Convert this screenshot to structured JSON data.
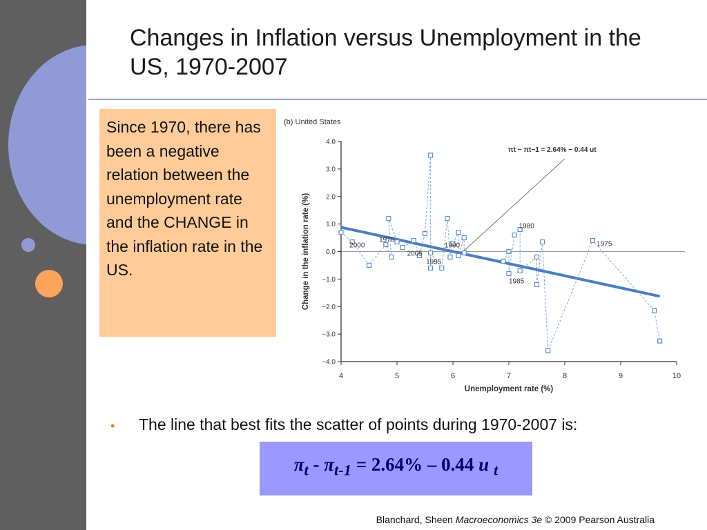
{
  "slide": {
    "title": "Changes in Inflation versus Unemployment in the US, 1970-2007",
    "callout": "Since 1970, there has been a negative relation between the unemployment rate and the CHANGE in the inflation rate in the US.",
    "bullet": "The line that best fits the scatter of points during 1970-2007 is:",
    "formula": {
      "pi1": "π",
      "sub1": "t",
      "minus": " - ",
      "pi2": "π",
      "sub2": "t-1",
      "rest": " = 2.64% – 0.44 ",
      "u": "u",
      "sub3": "t"
    },
    "footer": {
      "authors": "Blanchard, Sheen ",
      "book": "Macroeconomics 3e",
      "rest": " © 2009 Pearson Australia"
    },
    "colors": {
      "band": "#5f5f5f",
      "callout": "#ffcc99",
      "formula_box": "#9999ff",
      "line": "#4a7ec0",
      "marker": "#5b8fd0"
    }
  },
  "chart_data": {
    "type": "scatter",
    "panel_label": "(b) United States",
    "xlabel": "Unemployment rate (%)",
    "ylabel": "Change in the inflation rate (%)",
    "xlim": [
      4,
      10
    ],
    "ylim": [
      -4,
      4
    ],
    "xticks": [
      4,
      5,
      6,
      7,
      8,
      9,
      10
    ],
    "yticks": [
      4,
      3,
      2,
      1,
      0,
      -1,
      -2,
      -3,
      -4
    ],
    "ytick_labels": [
      "4.0",
      "3.0",
      "2.0",
      "1.0",
      "0.0",
      "−1.0",
      "−2.0",
      "−3.0",
      "−4.0"
    ],
    "fit_line": {
      "slope": -0.44,
      "intercept": 2.64,
      "x_range": [
        4,
        9.7
      ]
    },
    "equation_label": "πt − πt−1 = 2.64% − 0.44 ut",
    "points": [
      [
        4.0,
        0.7
      ],
      [
        4.2,
        0.35
      ],
      [
        4.5,
        -0.5
      ],
      [
        4.8,
        0.25
      ],
      [
        4.9,
        -0.2
      ],
      [
        4.85,
        1.2
      ],
      [
        5.0,
        0.35
      ],
      [
        5.1,
        0.15
      ],
      [
        5.3,
        0.4
      ],
      [
        5.4,
        -0.15
      ],
      [
        5.5,
        0.65
      ],
      [
        5.6,
        3.5
      ],
      [
        5.6,
        -0.6
      ],
      [
        5.6,
        -0.05
      ],
      [
        5.8,
        -0.6
      ],
      [
        5.9,
        1.2
      ],
      [
        5.95,
        -0.2
      ],
      [
        6.0,
        0.3
      ],
      [
        6.1,
        0.7
      ],
      [
        6.1,
        -0.15
      ],
      [
        6.2,
        0.5
      ],
      [
        6.2,
        -0.05
      ],
      [
        6.9,
        -0.35
      ],
      [
        7.0,
        0.0
      ],
      [
        7.0,
        -0.8
      ],
      [
        7.1,
        0.6
      ],
      [
        7.2,
        0.8
      ],
      [
        7.2,
        -0.7
      ],
      [
        7.5,
        -0.2
      ],
      [
        7.5,
        -1.2
      ],
      [
        7.6,
        0.35
      ],
      [
        7.7,
        -3.6
      ],
      [
        8.5,
        0.4
      ],
      [
        9.6,
        -2.15
      ],
      [
        9.7,
        -3.25
      ]
    ],
    "year_labels": [
      {
        "text": "2000",
        "x": 4.15,
        "y": 0.15
      },
      {
        "text": "1970",
        "x": 4.68,
        "y": 0.35
      },
      {
        "text": "2005",
        "x": 5.18,
        "y": -0.15
      },
      {
        "text": "1990",
        "x": 5.85,
        "y": 0.15
      },
      {
        "text": "1995",
        "x": 5.52,
        "y": -0.45
      },
      {
        "text": "1980",
        "x": 7.18,
        "y": 0.85
      },
      {
        "text": "1975",
        "x": 8.57,
        "y": 0.2
      },
      {
        "text": "1985",
        "x": 7.0,
        "y": -1.15
      }
    ]
  }
}
